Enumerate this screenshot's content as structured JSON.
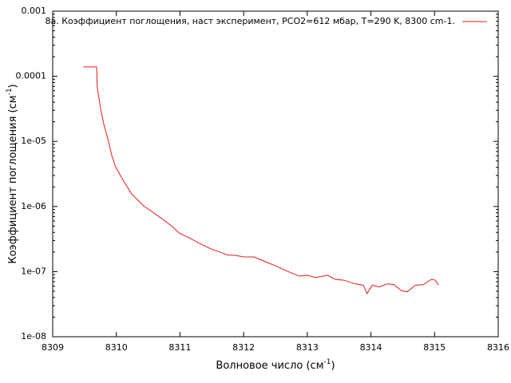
{
  "chart_data": {
    "type": "line",
    "x_label": {
      "text": "Волновое число (см",
      "sup": "-1",
      "end": ")"
    },
    "y_label": {
      "text": "Коэффициент поглощения (см",
      "sup": "-1",
      "end": ")"
    },
    "yscale": "log",
    "xlim": [
      8309,
      8316
    ],
    "xticks": [
      8309,
      8310,
      8311,
      8312,
      8313,
      8314,
      8315,
      8316
    ],
    "ylim": [
      1e-08,
      0.001
    ],
    "yticks": [
      {
        "value": 1e-08,
        "label": "1e-08"
      },
      {
        "value": 1e-07,
        "label": "1e-07"
      },
      {
        "value": 1e-06,
        "label": "1e-06"
      },
      {
        "value": 1e-05,
        "label": "1e-05"
      },
      0.0001,
      0.001
    ],
    "legend": "top-right",
    "series": [
      {
        "name": "8a. Коэффициент поглощения, наст эксперимент, PCO2=612 мбар, T=290 K, 8300 cm-1.",
        "color": "#e41a1c",
        "x": [
          8309.48,
          8309.69,
          8309.7,
          8309.75,
          8309.8,
          8309.87,
          8309.93,
          8309.99,
          8310.12,
          8310.24,
          8310.43,
          8310.68,
          8310.87,
          8310.99,
          8311.12,
          8311.31,
          8311.5,
          8311.62,
          8311.75,
          8311.87,
          8312.0,
          8312.16,
          8312.31,
          8312.5,
          8312.69,
          8312.88,
          8313.0,
          8313.13,
          8313.32,
          8313.44,
          8313.57,
          8313.75,
          8313.88,
          8313.94,
          8314.02,
          8314.13,
          8314.26,
          8314.36,
          8314.48,
          8314.57,
          8314.7,
          8314.82,
          8314.95,
          8315.01,
          8315.06
        ],
        "values": [
          0.000139,
          0.000139,
          6.7e-05,
          3.3e-05,
          1.9e-05,
          1.06e-05,
          6e-06,
          4e-06,
          2.4e-06,
          1.56e-06,
          1.02e-06,
          6.9e-07,
          5e-07,
          3.9e-07,
          3.4e-07,
          2.7e-07,
          2.2e-07,
          2e-07,
          1.8e-07,
          1.78e-07,
          1.68e-07,
          1.68e-07,
          1.46e-07,
          1.23e-07,
          1.01e-07,
          8.5e-08,
          8.8e-08,
          8.1e-08,
          8.8e-08,
          7.6e-08,
          7.4e-08,
          6.5e-08,
          6.2e-08,
          4.6e-08,
          6.2e-08,
          5.8e-08,
          6.5e-08,
          6.3e-08,
          5.1e-08,
          4.9e-08,
          6.2e-08,
          6.3e-08,
          7.6e-08,
          7.4e-08,
          6.3e-08
        ]
      }
    ]
  }
}
